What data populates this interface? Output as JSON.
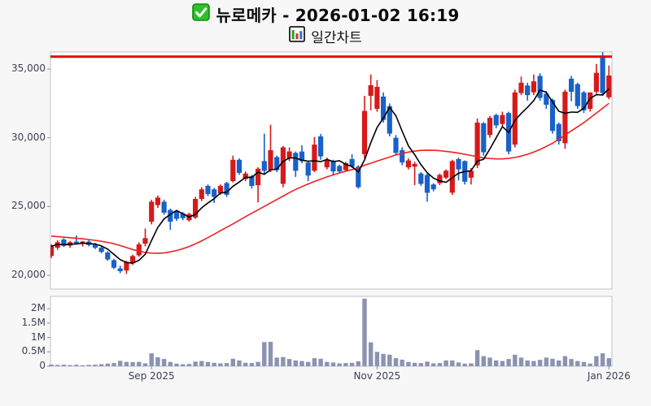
{
  "header": {
    "title": "뉴로메카 - 2026-01-02 16:19",
    "subtitle": "일간차트",
    "title_icon": "green-check-icon",
    "subtitle_icon": "bar-chart-icon"
  },
  "chart_data": {
    "type": "candlestick",
    "title": "뉴로메카 - 2026-01-02 16:19",
    "subtitle": "일간차트",
    "legend_position": "none",
    "grid": false,
    "price_axis": {
      "tick_values": [
        20000,
        25000,
        30000,
        35000
      ],
      "tick_labels": [
        "20,000",
        "25,000",
        "30,000",
        "35,000"
      ],
      "range": [
        18980,
        36280
      ]
    },
    "volume_axis": {
      "tick_values": [
        0,
        500000,
        1000000,
        1500000,
        2000000
      ],
      "tick_labels": [
        "0",
        "0.5M",
        "1M",
        "1.5M",
        "2M"
      ],
      "range": [
        0,
        2430000
      ]
    },
    "x_axis": {
      "tick_labels": [
        "Sep 2025",
        "Nov 2025",
        "Jan 2026"
      ],
      "tick_indices": [
        16,
        52,
        89
      ]
    },
    "resistance_line": {
      "value": 35900,
      "color": "#e8000b",
      "width": 3
    },
    "ma_short": {
      "period": 5,
      "color": "#000000"
    },
    "ma_long": {
      "color": "#ef2124",
      "values": [
        22850,
        22810,
        22770,
        22730,
        22690,
        22650,
        22600,
        22540,
        22470,
        22390,
        22290,
        22160,
        22010,
        21870,
        21750,
        21660,
        21610,
        21600,
        21630,
        21700,
        21800,
        21930,
        22090,
        22280,
        22500,
        22740,
        22990,
        23240,
        23490,
        23740,
        24000,
        24260,
        24510,
        24760,
        25010,
        25260,
        25510,
        25760,
        26010,
        26240,
        26450,
        26640,
        26820,
        26990,
        27150,
        27300,
        27440,
        27570,
        27690,
        27800,
        28000,
        28150,
        28300,
        28450,
        28600,
        28750,
        28870,
        28960,
        29030,
        29080,
        29100,
        29090,
        29060,
        29010,
        28950,
        28880,
        28800,
        28710,
        28620,
        28540,
        28490,
        28460,
        28460,
        28500,
        28570,
        28670,
        28800,
        28960,
        29150,
        29370,
        29600,
        29900,
        30200,
        30500,
        30800,
        31100,
        31450,
        31800,
        32150,
        32500
      ]
    },
    "colors": {
      "up": "#d61a1a",
      "down": "#1861c9",
      "volume_bar": "#8b93b1",
      "plot_bg": "#ffffff",
      "figure_bg": "#f7f7f8",
      "border": "#c2c2c9"
    },
    "volume_unit": 1000,
    "candles_format": [
      "open",
      "high",
      "low",
      "close",
      "volume_k"
    ],
    "candles": [
      [
        21400,
        22250,
        21250,
        22100,
        60
      ],
      [
        22000,
        22550,
        21850,
        22400,
        45
      ],
      [
        22600,
        22700,
        22050,
        22150,
        55
      ],
      [
        22150,
        22500,
        22000,
        22400,
        40
      ],
      [
        22450,
        22900,
        22250,
        22300,
        50
      ],
      [
        22300,
        22500,
        22100,
        22450,
        35
      ],
      [
        22450,
        22550,
        22100,
        22200,
        45
      ],
      [
        22250,
        22350,
        21900,
        22000,
        55
      ],
      [
        22000,
        22100,
        21600,
        21700,
        70
      ],
      [
        21650,
        21750,
        21050,
        21150,
        90
      ],
      [
        21100,
        21200,
        20450,
        20550,
        110
      ],
      [
        20500,
        20700,
        20150,
        20300,
        190
      ],
      [
        20350,
        21050,
        20100,
        20950,
        150
      ],
      [
        20900,
        21500,
        20750,
        21400,
        140
      ],
      [
        21450,
        22400,
        21350,
        22250,
        150
      ],
      [
        22300,
        23400,
        22100,
        22700,
        100
      ],
      [
        23900,
        25500,
        23700,
        25350,
        450
      ],
      [
        25100,
        25800,
        24900,
        25650,
        310
      ],
      [
        25350,
        25500,
        24400,
        24550,
        250
      ],
      [
        24750,
        24850,
        23300,
        23900,
        150
      ],
      [
        24650,
        24750,
        23950,
        24100,
        90
      ],
      [
        24500,
        24600,
        24000,
        24150,
        70
      ],
      [
        24000,
        24550,
        23900,
        24450,
        80
      ],
      [
        24200,
        25700,
        24100,
        25550,
        160
      ],
      [
        25550,
        26400,
        25400,
        26250,
        180
      ],
      [
        26500,
        26600,
        25750,
        25900,
        150
      ],
      [
        26250,
        26350,
        25260,
        25700,
        120
      ],
      [
        25950,
        26600,
        25850,
        26500,
        100
      ],
      [
        26700,
        26800,
        25700,
        25850,
        110
      ],
      [
        26850,
        28700,
        26750,
        28400,
        260
      ],
      [
        28400,
        28500,
        27300,
        27450,
        200
      ],
      [
        27000,
        27550,
        26850,
        27400,
        120
      ],
      [
        27200,
        27300,
        26300,
        26500,
        110
      ],
      [
        26550,
        27850,
        25300,
        27750,
        150
      ],
      [
        28300,
        30300,
        27400,
        27600,
        840
      ],
      [
        27650,
        30950,
        27500,
        29100,
        850
      ],
      [
        28600,
        28700,
        27500,
        27650,
        300
      ],
      [
        26650,
        29400,
        26400,
        29300,
        320
      ],
      [
        28500,
        29300,
        28300,
        29000,
        250
      ],
      [
        28900,
        29000,
        27150,
        27600,
        200
      ],
      [
        29000,
        29450,
        28150,
        28300,
        180
      ],
      [
        28200,
        28300,
        26850,
        27250,
        150
      ],
      [
        27600,
        30050,
        27500,
        29500,
        280
      ],
      [
        30100,
        30280,
        28400,
        28650,
        260
      ],
      [
        27850,
        28550,
        27700,
        28400,
        150
      ],
      [
        28300,
        28400,
        27250,
        27550,
        130
      ],
      [
        27950,
        28050,
        27400,
        27550,
        100
      ],
      [
        27650,
        28250,
        27550,
        28150,
        110
      ],
      [
        28450,
        28800,
        27800,
        27900,
        120
      ],
      [
        27900,
        28000,
        26300,
        26400,
        170
      ],
      [
        28800,
        33050,
        28500,
        31950,
        2350
      ],
      [
        33050,
        34600,
        32000,
        33820,
        830
      ],
      [
        32100,
        34200,
        31900,
        33700,
        500
      ],
      [
        33000,
        33300,
        31100,
        31300,
        430
      ],
      [
        32300,
        32500,
        30100,
        30300,
        400
      ],
      [
        30000,
        30200,
        28700,
        28900,
        280
      ],
      [
        29100,
        29300,
        28000,
        28200,
        230
      ],
      [
        27850,
        28500,
        27700,
        28350,
        150
      ],
      [
        27900,
        28250,
        26550,
        28100,
        120
      ],
      [
        27400,
        27500,
        26500,
        26650,
        110
      ],
      [
        27300,
        27400,
        25350,
        26000,
        160
      ],
      [
        26600,
        26700,
        26100,
        26250,
        100
      ],
      [
        26700,
        27400,
        26550,
        27300,
        110
      ],
      [
        27100,
        27700,
        27000,
        27600,
        200
      ],
      [
        26000,
        28400,
        25850,
        28300,
        200
      ],
      [
        28450,
        28550,
        26900,
        27700,
        130
      ],
      [
        28300,
        28350,
        26600,
        26800,
        90
      ],
      [
        27100,
        27800,
        26600,
        27600,
        100
      ],
      [
        28000,
        31400,
        27800,
        31100,
        560
      ],
      [
        31050,
        31150,
        28700,
        28950,
        350
      ],
      [
        30200,
        31600,
        30000,
        31450,
        300
      ],
      [
        31650,
        31750,
        30700,
        30900,
        200
      ],
      [
        31000,
        31900,
        30850,
        31650,
        180
      ],
      [
        31800,
        31900,
        28800,
        29000,
        250
      ],
      [
        29500,
        33500,
        29300,
        33300,
        400
      ],
      [
        33250,
        34450,
        33100,
        34000,
        300
      ],
      [
        33800,
        34000,
        32700,
        33100,
        200
      ],
      [
        33300,
        34600,
        33100,
        34100,
        180
      ],
      [
        34500,
        34700,
        32700,
        32900,
        220
      ],
      [
        33200,
        33400,
        32100,
        32400,
        300
      ],
      [
        32750,
        32850,
        30300,
        30500,
        260
      ],
      [
        31000,
        31100,
        29500,
        29750,
        200
      ],
      [
        29600,
        33500,
        29200,
        33350,
        350
      ],
      [
        34300,
        34500,
        32650,
        33350,
        250
      ],
      [
        33900,
        34000,
        32100,
        32300,
        180
      ],
      [
        33300,
        33400,
        31800,
        32000,
        150
      ],
      [
        32100,
        33300,
        31900,
        33300,
        90
      ],
      [
        33350,
        35370,
        33200,
        34725,
        350
      ],
      [
        35850,
        36300,
        33050,
        33250,
        450
      ],
      [
        32950,
        35250,
        32800,
        34530,
        280
      ]
    ]
  }
}
